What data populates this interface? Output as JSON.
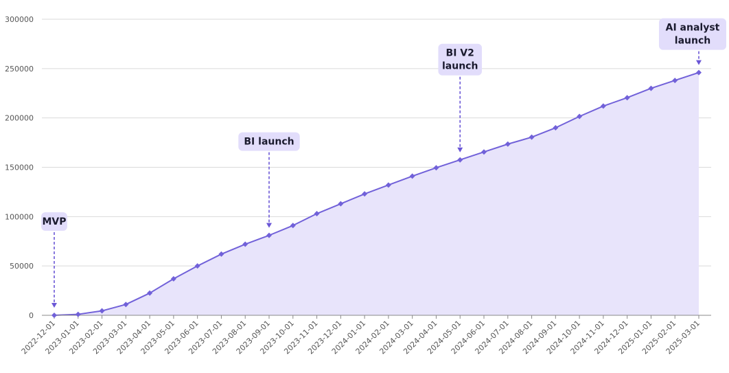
{
  "chart_data": {
    "type": "area",
    "title": "",
    "xlabel": "",
    "ylabel": "",
    "ylim": [
      0,
      300000
    ],
    "yticks": [
      0,
      50000,
      100000,
      150000,
      200000,
      250000,
      300000
    ],
    "ytick_labels": [
      "0",
      "50000",
      "100000",
      "150000",
      "200000",
      "250000",
      "300000"
    ],
    "grid": "horizontal",
    "x": [
      "2022-12-01",
      "2023-01-01",
      "2023-02-01",
      "2023-03-01",
      "2023-04-01",
      "2023-05-01",
      "2023-06-01",
      "2023-07-01",
      "2023-08-01",
      "2023-09-01",
      "2023-10-01",
      "2023-11-01",
      "2023-12-01",
      "2024-01-01",
      "2024-02-01",
      "2024-03-01",
      "2024-04-01",
      "2024-05-01",
      "2024-06-01",
      "2024-07-01",
      "2024-08-01",
      "2024-09-01",
      "2024-10-01",
      "2024-11-01",
      "2024-12-01",
      "2025-01-01",
      "2025-02-01",
      "2025-03-01"
    ],
    "series": [
      {
        "values": [
          0,
          1000,
          4500,
          11000,
          22500,
          37000,
          50000,
          62000,
          72000,
          81000,
          91000,
          103000,
          113000,
          123000,
          132000,
          141000,
          149500,
          157500,
          165500,
          173500,
          180500,
          190000,
          201500,
          212000,
          220500,
          230000,
          238000,
          246000
        ],
        "line_color": "#7161d9",
        "fill_color": "#e8e4fb"
      }
    ],
    "annotations": [
      {
        "lines": [
          "MVP"
        ],
        "x": "2022-12-01",
        "y": 0
      },
      {
        "lines": [
          "BI launch"
        ],
        "x": "2023-09-01",
        "y": 81000
      },
      {
        "lines": [
          "BI V2",
          "launch"
        ],
        "x": "2024-05-01",
        "y": 157500
      },
      {
        "lines": [
          "AI analyst",
          "launch"
        ],
        "x": "2025-03-01",
        "y": 246000
      }
    ],
    "colors": {
      "line": "#7161d9",
      "area": "#e8e4fb",
      "annotation_box": "#e2ddfb",
      "annotation_arrow": "#6a56d6",
      "grid": "#d9d9d9"
    }
  }
}
